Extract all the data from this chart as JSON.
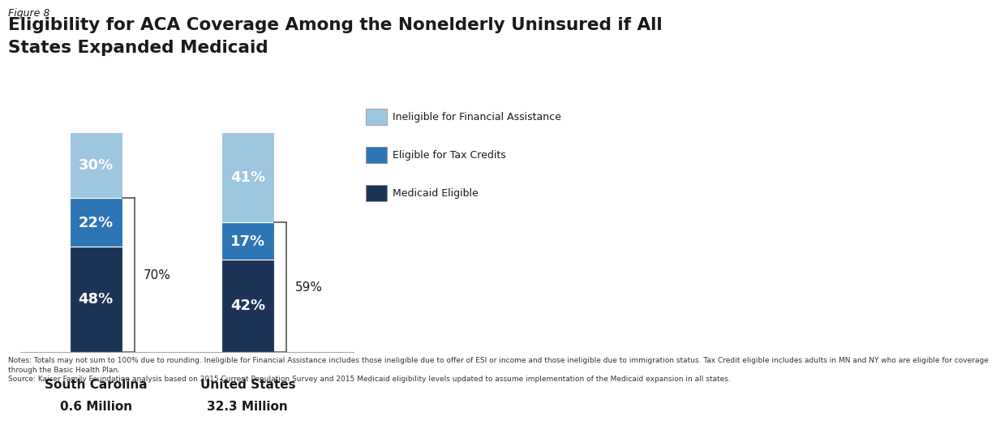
{
  "figure_label": "Figure 8",
  "title_line1": "Eligibility for ACA Coverage Among the Nonelderly Uninsured if All",
  "title_line2": "States Expanded Medicaid",
  "categories": [
    "South Carolina",
    "United States"
  ],
  "subtitles": [
    "0.6 Million",
    "32.3 Million"
  ],
  "segments": {
    "Medicaid Eligible": [
      48,
      42
    ],
    "Eligible for Tax Credits": [
      22,
      17
    ],
    "Ineligible for Financial Assistance": [
      30,
      41
    ]
  },
  "colors": {
    "Medicaid Eligible": "#1c3557",
    "Eligible for Tax Credits": "#2e75b6",
    "Ineligible for Financial Assistance": "#9dc6e0"
  },
  "bracket_labels": [
    "70%",
    "59%"
  ],
  "bar_width": 0.35,
  "bar_positions": [
    1,
    2
  ],
  "notes_text": "Notes: Totals may not sum to 100% due to rounding. Ineligible for Financial Assistance includes those ineligible due to offer of ESI or income and those ineligible due to immigration status. Tax Credit eligible includes adults in MN and NY who are eligible for coverage\nthrough the Basic Health Plan.\nSource: Kaiser Family Foundation analysis based on 2015 Current Population Survey and 2015 Medicaid eligibility levels updated to assume implementation of the Medicaid expansion in all states.",
  "legend_labels": [
    "Ineligible for Financial Assistance",
    "Eligible for Tax Credits",
    "Medicaid Eligible"
  ],
  "background_color": "#ffffff",
  "text_color": "#1a1a1a",
  "bracket_color": "#555555"
}
